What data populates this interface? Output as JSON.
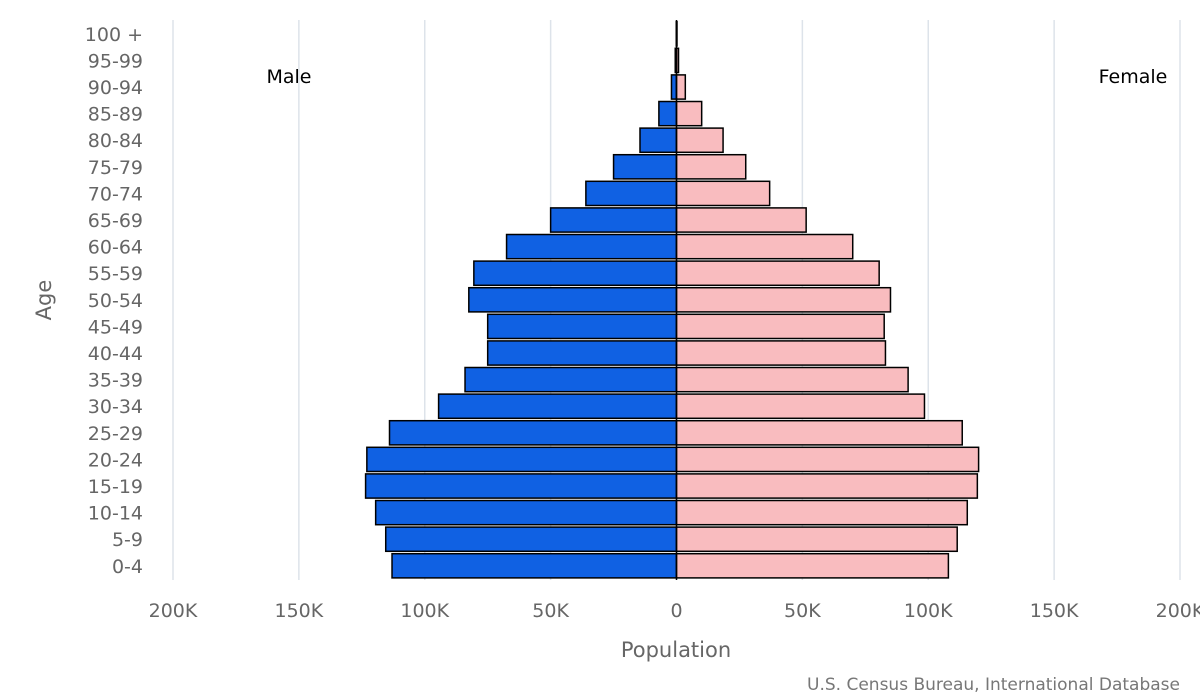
{
  "chart_data": {
    "type": "bar",
    "orientation": "horizontal",
    "title": "",
    "xlabel": "Population",
    "ylabel": "Age",
    "categories": [
      "100 +",
      "95-99",
      "90-94",
      "85-89",
      "80-84",
      "75-79",
      "70-74",
      "65-69",
      "60-64",
      "55-59",
      "50-54",
      "45-49",
      "40-44",
      "35-39",
      "30-34",
      "25-29",
      "20-24",
      "15-19",
      "10-14",
      "5-9",
      "0-4"
    ],
    "series": [
      {
        "name": "Male",
        "color": "#1061e3",
        "values": [
          100,
          500,
          2000,
          7000,
          14500,
          25000,
          36000,
          50000,
          67500,
          80500,
          82500,
          75000,
          75000,
          84000,
          94500,
          114000,
          123000,
          123500,
          119500,
          115500,
          113000
        ]
      },
      {
        "name": "Female",
        "color": "#f9bcbf",
        "values": [
          100,
          800,
          3500,
          10000,
          18500,
          27500,
          37000,
          51500,
          70000,
          80500,
          85000,
          82500,
          83000,
          92000,
          98500,
          113500,
          120000,
          119500,
          115500,
          111500,
          108000
        ]
      }
    ],
    "xlim": [
      -200000,
      200000
    ],
    "x_ticks": [
      -200000,
      -150000,
      -100000,
      -50000,
      0,
      50000,
      100000,
      150000,
      200000
    ],
    "x_tick_labels": [
      "200K",
      "150K",
      "100K",
      "50K",
      "0",
      "50K",
      "100K",
      "150K",
      "200K"
    ],
    "grid": true,
    "side_labels": {
      "left": "Male",
      "right": "Female"
    },
    "source": "U.S. Census Bureau, International Database"
  }
}
